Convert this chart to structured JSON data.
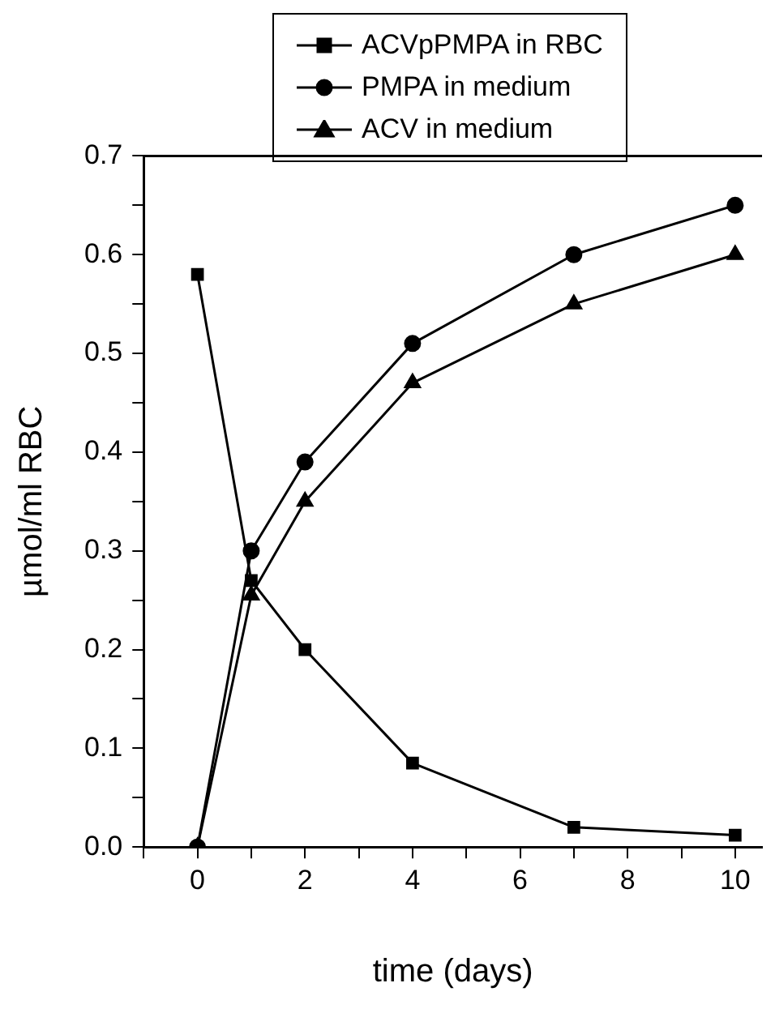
{
  "chart_data": {
    "type": "line",
    "xlabel": "time (days)",
    "ylabel": "µmol/ml RBC",
    "x": [
      0,
      1,
      2,
      4,
      7,
      10
    ],
    "series": [
      {
        "name": "ACVpPMPA in RBC",
        "color": "#000000",
        "marker": "square",
        "values": [
          0.58,
          0.27,
          0.2,
          0.085,
          0.02,
          0.012
        ]
      },
      {
        "name": "PMPA in medium",
        "color": "#000000",
        "marker": "circle",
        "values": [
          0,
          0.3,
          0.39,
          0.51,
          0.6,
          0.65
        ]
      },
      {
        "name": "ACV in medium",
        "color": "#000000",
        "marker": "triangle",
        "values": [
          0,
          0.255,
          0.35,
          0.47,
          0.55,
          0.6
        ]
      }
    ],
    "xlim": [
      -1,
      10.5
    ],
    "xticks": [
      {
        "value": -1,
        "label": null
      },
      0,
      {
        "value": 1,
        "label": null
      },
      2,
      {
        "value": 3,
        "label": null
      },
      4,
      {
        "value": 5,
        "label": null
      },
      6,
      {
        "value": 7,
        "label": null
      },
      8,
      {
        "value": 9,
        "label": null
      },
      10
    ],
    "ylim": [
      0,
      0.7
    ],
    "yticks": [
      "0.0",
      {
        "value": 0.05,
        "label": null
      },
      0.1,
      {
        "value": 0.15,
        "label": null
      },
      0.2,
      {
        "value": 0.25,
        "label": null
      },
      0.3,
      {
        "value": 0.35,
        "label": null
      },
      0.4,
      {
        "value": 0.45,
        "label": null
      },
      0.5,
      {
        "value": 0.55,
        "label": null
      },
      0.6,
      {
        "value": 0.65,
        "label": null
      },
      0.7
    ],
    "grid": false,
    "legend": "top",
    "line_style": "solid"
  }
}
